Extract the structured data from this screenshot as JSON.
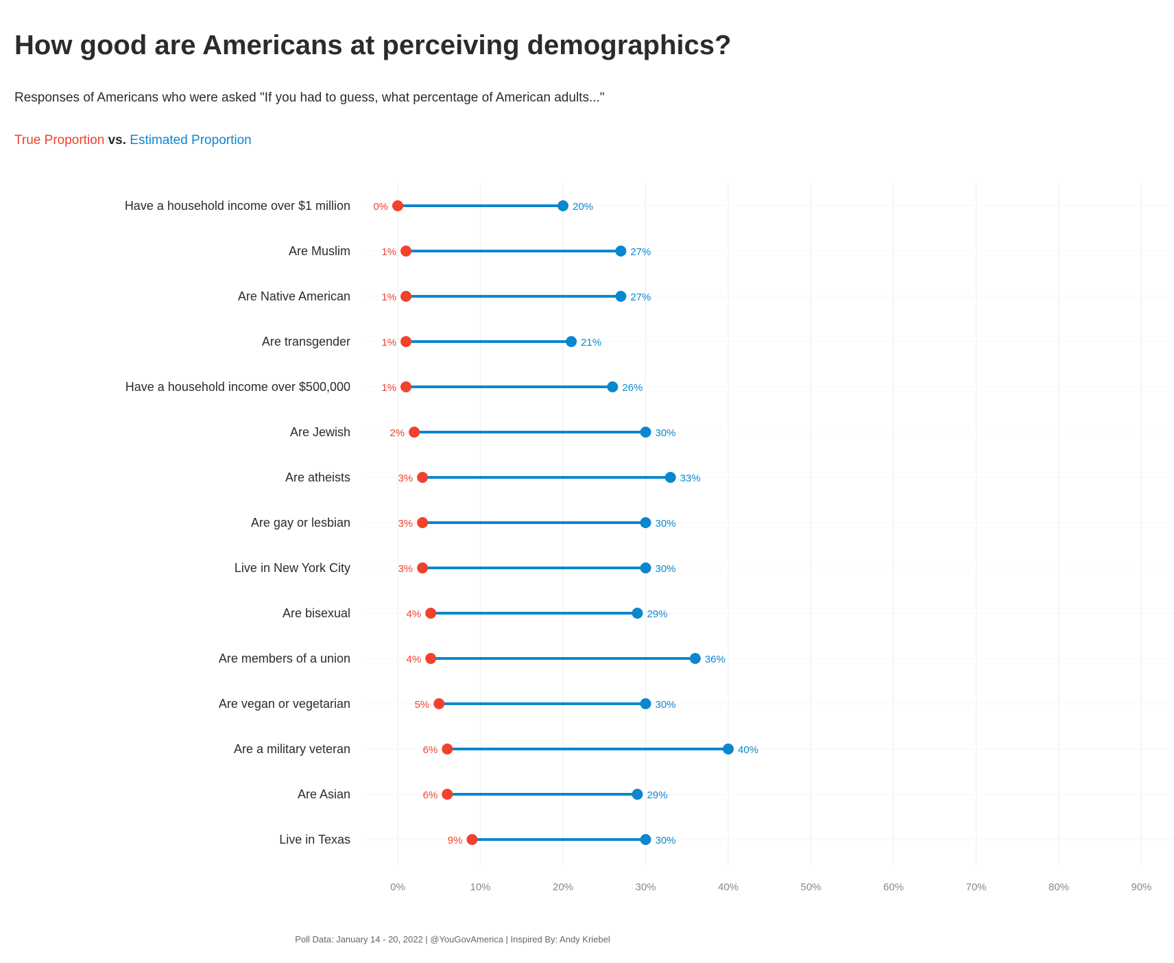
{
  "title": "How good are Americans at perceiving demographics?",
  "subtitle": "Responses of Americans who were asked \"If you had to guess, what percentage of American adults...\"",
  "legend": {
    "true_label": "True Proportion",
    "separator": "vs.",
    "estimated_label": "Estimated Proportion"
  },
  "caption": "Poll Data: January 14 - 20, 2022 | @YouGovAmerica | Inspired By: Andy Kriebel",
  "colors": {
    "true": "#f2412d",
    "estimated": "#0b87cf",
    "grid": "#eeeeee",
    "text": "#2b2b2b",
    "tick": "#888888"
  },
  "chart_data": {
    "type": "dumbbell",
    "categories": [
      "Have a household income over $1 million",
      "Are Muslim",
      "Are Native American",
      "Are transgender",
      "Have a household income over $500,000",
      "Are Jewish",
      "Are atheists",
      "Are gay or lesbian",
      "Live in New York City",
      "Are bisexual",
      "Are members of a union",
      "Are vegan or vegetarian",
      "Are a military veteran",
      "Are Asian",
      "Live in Texas"
    ],
    "series": [
      {
        "name": "True Proportion",
        "values": [
          0,
          1,
          1,
          1,
          1,
          2,
          3,
          3,
          3,
          4,
          4,
          5,
          6,
          6,
          9
        ]
      },
      {
        "name": "Estimated Proportion",
        "values": [
          20,
          27,
          27,
          21,
          26,
          30,
          33,
          30,
          30,
          29,
          36,
          30,
          40,
          29,
          30
        ]
      }
    ],
    "x_ticks": [
      "0%",
      "10%",
      "20%",
      "30%",
      "40%",
      "50%",
      "60%",
      "70%",
      "80%",
      "90%"
    ],
    "xlim": [
      0,
      90
    ],
    "value_suffix": "%",
    "grid": true
  }
}
